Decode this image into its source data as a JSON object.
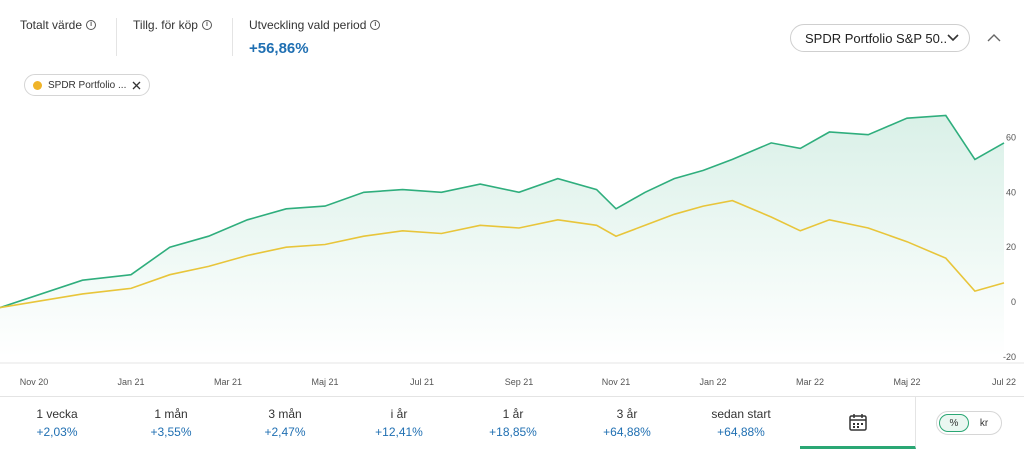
{
  "metrics": [
    {
      "label": "Totalt värde",
      "value": ""
    },
    {
      "label": "Tillg. för köp",
      "value": ""
    },
    {
      "label": "Utveckling vald period",
      "value": "+56,86%"
    }
  ],
  "fund_select": {
    "value": "SPDR Portfolio S&P 50..."
  },
  "legend_chip": {
    "label": "SPDR Portfolio ...",
    "color": "#f0b429"
  },
  "chart_data": {
    "type": "line",
    "x_tick_labels": [
      "Nov 20",
      "Jan 21",
      "Mar 21",
      "Maj 21",
      "Jul 21",
      "Sep 21",
      "Nov 21",
      "Jan 22",
      "Mar 22",
      "Maj 22",
      "Jul 22"
    ],
    "y_ticks": [
      60,
      40,
      20,
      0,
      -20
    ],
    "ylim": [
      -20,
      70
    ],
    "y_axis_position": "right",
    "grid": false,
    "series": [
      {
        "color": "#2fae7d",
        "x": [
          0,
          0.5,
          1,
          1.4,
          1.8,
          2.2,
          2.6,
          3.0,
          3.4,
          3.8,
          4.2,
          4.6,
          5.0,
          5.4,
          5.8,
          6.0,
          6.3,
          6.6,
          6.9,
          7.2,
          7.6,
          7.9,
          8.2,
          8.6,
          9.0,
          9.4,
          9.7,
          10.0
        ],
        "values": [
          -2,
          8,
          10,
          20,
          24,
          30,
          34,
          35,
          40,
          41,
          40,
          43,
          40,
          45,
          41,
          34,
          40,
          45,
          48,
          52,
          58,
          56,
          62,
          61,
          67,
          68,
          52,
          58
        ]
      },
      {
        "color": "#e8c53a",
        "x": [
          0,
          0.5,
          1,
          1.4,
          1.8,
          2.2,
          2.6,
          3.0,
          3.4,
          3.8,
          4.2,
          4.6,
          5.0,
          5.4,
          5.8,
          6.0,
          6.3,
          6.6,
          6.9,
          7.2,
          7.6,
          7.9,
          8.2,
          8.6,
          9.0,
          9.4,
          9.7,
          10.0
        ],
        "values": [
          -2,
          3,
          5,
          10,
          13,
          17,
          20,
          21,
          24,
          26,
          25,
          28,
          27,
          30,
          28,
          24,
          28,
          32,
          35,
          37,
          31,
          26,
          30,
          27,
          22,
          16,
          4,
          7
        ]
      }
    ]
  },
  "periods": [
    {
      "label": "1 vecka",
      "value": "+2,03%"
    },
    {
      "label": "1 mån",
      "value": "+3,55%"
    },
    {
      "label": "3 mån",
      "value": "+2,47%"
    },
    {
      "label": "i år",
      "value": "+12,41%"
    },
    {
      "label": "1 år",
      "value": "+18,85%"
    },
    {
      "label": "3 år",
      "value": "+64,88%"
    },
    {
      "label": "sedan start",
      "value": "+64,88%"
    }
  ],
  "unit_toggle": {
    "percent": "%",
    "currency": "kr",
    "active": "%"
  }
}
